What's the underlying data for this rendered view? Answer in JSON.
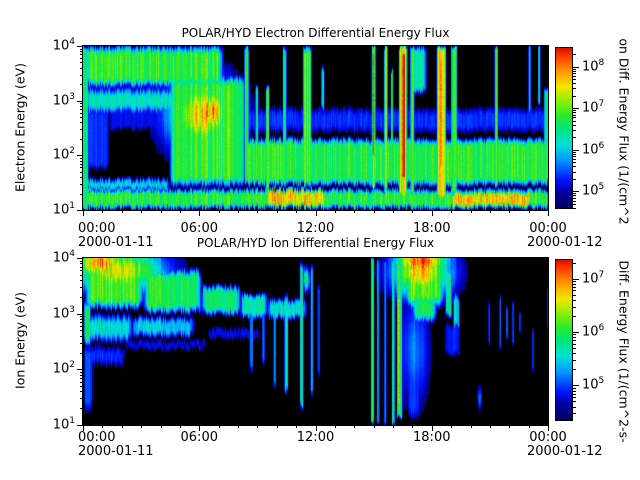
{
  "colormap": {
    "stops": [
      [
        0.0,
        0,
        0,
        90
      ],
      [
        0.1,
        0,
        0,
        160
      ],
      [
        0.18,
        0,
        20,
        255
      ],
      [
        0.3,
        0,
        150,
        255
      ],
      [
        0.4,
        0,
        225,
        215
      ],
      [
        0.5,
        0,
        230,
        120
      ],
      [
        0.58,
        40,
        235,
        45
      ],
      [
        0.68,
        150,
        240,
        0
      ],
      [
        0.76,
        245,
        230,
        0
      ],
      [
        0.86,
        255,
        150,
        0
      ],
      [
        0.94,
        255,
        70,
        0
      ],
      [
        1.0,
        225,
        15,
        0
      ]
    ],
    "background": "#000000",
    "page_background": "#ffffff"
  },
  "chart_data": [
    {
      "type": "heatmap",
      "title": "POLAR/HYD  Electron Differential Energy Flux",
      "ylabel": "Electron Energy (eV)",
      "colorbar_label": "on Diff. Energy Flux (1/(cm^2",
      "x_axis": {
        "tick_labels": [
          "00:00",
          "06:00",
          "12:00",
          "18:00",
          "00:00"
        ],
        "tick_hours": [
          0,
          6,
          12,
          18,
          24
        ],
        "minor_every_hours": 1,
        "start_date": "2000-01-11",
        "end_date": "2000-01-12",
        "range_hours": [
          0,
          24
        ]
      },
      "y_axis": {
        "tick_base": "10",
        "exponents": [
          1,
          2,
          3,
          4
        ],
        "log_range": [
          1,
          4
        ]
      },
      "colorbar": {
        "tick_base": "10",
        "exponents": [
          5,
          6,
          7,
          8
        ],
        "log_range": [
          4.6,
          8.45
        ]
      },
      "features": [
        [
          "r",
          0,
          24,
          1.0,
          1.42,
          0.56,
          0.1,
          0.12
        ],
        [
          "r",
          9.4,
          12.5,
          1.02,
          1.42,
          0.77,
          0.15,
          0.1
        ],
        [
          "r",
          18.9,
          23.2,
          1.02,
          1.38,
          0.77,
          0.2,
          0.1
        ],
        [
          "r",
          0,
          4.5,
          1.32,
          1.62,
          0.38,
          0.2,
          0.12
        ],
        [
          "r",
          0,
          7.3,
          3.22,
          4.05,
          0.57,
          0.35,
          0.18
        ],
        [
          "r",
          0,
          5.2,
          2.72,
          3.3,
          0.42,
          0.3,
          0.2
        ],
        [
          "r",
          0,
          1.35,
          1.7,
          2.9,
          0.2,
          0.15,
          0.15
        ],
        [
          "r",
          1.2,
          5.0,
          2.42,
          2.95,
          0.16,
          0.3,
          0.12
        ],
        [
          "r",
          4.4,
          8.4,
          1.4,
          3.5,
          0.57,
          0.25,
          0.2
        ],
        [
          "g",
          6.1,
          1.3,
          2.75,
          0.5,
          0.78
        ],
        [
          "g",
          6.6,
          0.65,
          2.8,
          0.33,
          0.86
        ],
        [
          "r",
          8.3,
          24,
          1.42,
          2.35,
          0.55,
          0.1,
          0.15
        ],
        [
          "r",
          8.3,
          24,
          2.35,
          2.95,
          0.2,
          0.1,
          0.2
        ],
        [
          "r",
          13.2,
          15.0,
          2.3,
          3.0,
          0.1,
          0.3,
          0.2
        ],
        [
          "r",
          16.8,
          17.75,
          3.1,
          4.05,
          0.45,
          0.2,
          0.15
        ],
        [
          "r",
          -0.1,
          0.28,
          1.0,
          4.05,
          0.52,
          0.08,
          0.1
        ],
        [
          "r",
          8.28,
          8.55,
          1.45,
          4.05,
          0.55,
          0.07,
          0.15
        ],
        [
          "r",
          8.85,
          9.05,
          1.45,
          3.3,
          0.45,
          0.06,
          0.15
        ],
        [
          "r",
          9.4,
          9.62,
          1.25,
          3.3,
          0.6,
          0.06,
          0.15
        ],
        [
          "r",
          10.28,
          10.5,
          1.4,
          4.05,
          0.5,
          0.06,
          0.15
        ],
        [
          "r",
          11.3,
          11.8,
          1.4,
          4.05,
          0.57,
          0.1,
          0.15
        ],
        [
          "r",
          12.25,
          12.45,
          2.8,
          3.7,
          0.4,
          0.06,
          0.15
        ],
        [
          "r",
          14.85,
          15.1,
          1.35,
          4.05,
          0.62,
          0.08,
          0.1
        ],
        [
          "r",
          14.92,
          15.05,
          1.9,
          4.05,
          0.88,
          0.05,
          0.15
        ],
        [
          "r",
          15.5,
          15.72,
          1.3,
          4.05,
          0.6,
          0.06,
          0.1
        ],
        [
          "r",
          15.85,
          16.0,
          1.45,
          3.6,
          0.52,
          0.05,
          0.12
        ],
        [
          "r",
          16.25,
          16.75,
          1.2,
          4.05,
          0.72,
          0.1,
          0.1
        ],
        [
          "r",
          16.4,
          16.62,
          1.5,
          3.95,
          0.97,
          0.05,
          0.12
        ],
        [
          "r",
          16.85,
          17.1,
          1.3,
          4.05,
          0.55,
          0.06,
          0.1
        ],
        [
          "r",
          18.2,
          18.75,
          1.2,
          4.05,
          0.78,
          0.12,
          0.1
        ],
        [
          "r",
          18.38,
          18.55,
          1.75,
          3.9,
          0.92,
          0.05,
          0.12
        ],
        [
          "r",
          18.95,
          19.3,
          1.3,
          4.05,
          0.57,
          0.08,
          0.1
        ],
        [
          "r",
          21.2,
          21.4,
          1.4,
          4.05,
          0.55,
          0.05,
          0.1
        ],
        [
          "r",
          22.95,
          23.1,
          2.7,
          4.05,
          0.45,
          0.05,
          0.12
        ],
        [
          "r",
          23.45,
          23.6,
          2.85,
          4.05,
          0.5,
          0.05,
          0.12
        ],
        [
          "r",
          23.75,
          24.05,
          1.5,
          3.3,
          0.45,
          0.06,
          0.15
        ]
      ]
    },
    {
      "type": "heatmap",
      "title": "POLAR/HYD  Ion Differential Energy Flux",
      "ylabel": "Ion Energy (eV)",
      "colorbar_label": "Diff. Energy Flux (1/(cm^2-s-",
      "x_axis": {
        "tick_labels": [
          "00:00",
          "06:00",
          "12:00",
          "18:00",
          "00:00"
        ],
        "tick_hours": [
          0,
          6,
          12,
          18,
          24
        ],
        "minor_every_hours": 1,
        "start_date": "2000-01-11",
        "end_date": "2000-01-12",
        "range_hours": [
          0,
          24
        ]
      },
      "y_axis": {
        "tick_base": "10",
        "exponents": [
          1,
          2,
          3,
          4
        ],
        "log_range": [
          1,
          4
        ]
      },
      "colorbar": {
        "tick_base": "10",
        "exponents": [
          5,
          6,
          7
        ],
        "log_range": [
          4.35,
          7.35
        ]
      },
      "features": [
        [
          "g",
          0.9,
          1.0,
          3.93,
          0.22,
          0.88
        ],
        [
          "g",
          1.8,
          1.7,
          3.78,
          0.3,
          0.76
        ],
        [
          "r",
          0,
          3.2,
          3.05,
          4.05,
          0.6,
          0.4,
          0.2
        ],
        [
          "r",
          3.0,
          6.2,
          2.98,
          3.85,
          0.55,
          0.4,
          0.18
        ],
        [
          "r",
          6.0,
          8.2,
          2.95,
          3.55,
          0.5,
          0.3,
          0.15
        ],
        [
          "r",
          8.0,
          9.6,
          2.9,
          3.4,
          0.45,
          0.3,
          0.12
        ],
        [
          "r",
          9.4,
          11.6,
          2.88,
          3.3,
          0.4,
          0.3,
          0.12
        ],
        [
          "r",
          0,
          2.6,
          2.45,
          3.05,
          0.4,
          0.3,
          0.2
        ],
        [
          "r",
          2.4,
          5.8,
          2.55,
          3.0,
          0.36,
          0.3,
          0.15
        ],
        [
          "r",
          0,
          2.2,
          2.0,
          2.5,
          0.2,
          0.2,
          0.2
        ],
        [
          "r",
          2.0,
          6.5,
          2.3,
          2.6,
          0.17,
          0.3,
          0.15
        ],
        [
          "r",
          6.3,
          9.2,
          2.5,
          2.8,
          0.16,
          0.3,
          0.12
        ],
        [
          "r",
          0,
          0.5,
          1.15,
          2.6,
          0.22,
          0.1,
          0.3
        ],
        [
          "r",
          0,
          0.4,
          2.4,
          3.3,
          0.5,
          0.08,
          0.2
        ],
        [
          "r",
          8.55,
          8.78,
          1.9,
          3.2,
          0.28,
          0.06,
          0.2
        ],
        [
          "r",
          9.2,
          9.38,
          2.0,
          3.2,
          0.26,
          0.05,
          0.2
        ],
        [
          "r",
          9.78,
          9.95,
          1.6,
          3.3,
          0.3,
          0.05,
          0.2
        ],
        [
          "r",
          10.35,
          10.58,
          1.5,
          3.4,
          0.45,
          0.06,
          0.2
        ],
        [
          "r",
          11.15,
          11.38,
          1.25,
          4.0,
          0.45,
          0.06,
          0.2
        ],
        [
          "r",
          11.7,
          11.88,
          1.5,
          4.0,
          0.3,
          0.05,
          0.2
        ],
        [
          "r",
          12.05,
          12.22,
          1.8,
          3.6,
          0.26,
          0.05,
          0.2
        ],
        [
          "g",
          11.5,
          0.12,
          3.62,
          0.14,
          0.55
        ],
        [
          "r",
          14.82,
          15.0,
          1.0,
          4.05,
          0.55,
          0.05,
          0.1
        ],
        [
          "r",
          15.12,
          15.3,
          1.0,
          4.05,
          0.3,
          0.05,
          0.1
        ],
        [
          "r",
          15.5,
          15.65,
          1.0,
          4.05,
          0.3,
          0.04,
          0.1
        ],
        [
          "r",
          15.9,
          16.08,
          1.0,
          4.05,
          0.5,
          0.05,
          0.1
        ],
        [
          "r",
          16.15,
          16.48,
          1.1,
          3.95,
          0.55,
          0.08,
          0.1
        ],
        [
          "r",
          16.22,
          16.38,
          1.25,
          3.35,
          0.8,
          0.05,
          0.15
        ],
        [
          "g",
          17.45,
          1.0,
          3.95,
          0.22,
          0.93
        ],
        [
          "g",
          17.45,
          1.1,
          3.75,
          0.32,
          0.8
        ],
        [
          "r",
          16.5,
          18.7,
          3.05,
          4.05,
          0.6,
          0.35,
          0.25
        ],
        [
          "r",
          16.9,
          18.3,
          2.8,
          3.4,
          0.52,
          0.3,
          0.2
        ],
        [
          "g",
          17.1,
          0.55,
          2.35,
          0.75,
          0.27
        ],
        [
          "r",
          16.6,
          17.5,
          1.0,
          2.4,
          0.2,
          0.25,
          0.3
        ],
        [
          "r",
          18.65,
          19.05,
          2.9,
          3.85,
          0.5,
          0.1,
          0.15
        ],
        [
          "r",
          19.05,
          19.45,
          2.7,
          3.4,
          0.38,
          0.1,
          0.15
        ],
        [
          "r",
          18.6,
          19.5,
          2.2,
          2.9,
          0.18,
          0.15,
          0.15
        ],
        [
          "r",
          20.88,
          21.0,
          2.4,
          3.3,
          0.22,
          0.03,
          0.15
        ],
        [
          "r",
          21.45,
          21.58,
          2.3,
          3.4,
          0.25,
          0.03,
          0.15
        ],
        [
          "r",
          21.8,
          21.92,
          2.5,
          3.2,
          0.22,
          0.03,
          0.12
        ],
        [
          "r",
          22.1,
          22.22,
          2.4,
          3.3,
          0.22,
          0.03,
          0.12
        ],
        [
          "r",
          22.45,
          22.58,
          2.6,
          3.1,
          0.2,
          0.03,
          0.12
        ],
        [
          "r",
          23.15,
          23.28,
          1.9,
          2.8,
          0.22,
          0.03,
          0.15
        ],
        [
          "g",
          20.45,
          0.08,
          1.5,
          0.15,
          0.3
        ],
        [
          "r",
          23.9,
          24.05,
          2.7,
          3.6,
          0.22,
          0.04,
          0.15
        ]
      ]
    }
  ]
}
